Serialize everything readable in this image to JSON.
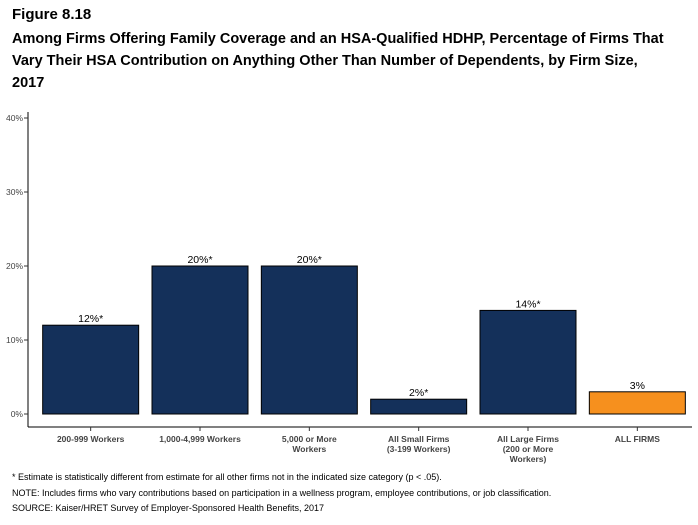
{
  "figure_label": "Figure 8.18",
  "chart_data": {
    "type": "bar",
    "title": "Among Firms Offering Family Coverage and an HSA-Qualified HDHP, Percentage of Firms That Vary Their HSA Contribution on Anything Other Than Number of Dependents, by Firm Size, 2017",
    "xlabel": "",
    "ylabel": "",
    "ylim": [
      0,
      40
    ],
    "yticks": [
      "0%",
      "10%",
      "20%",
      "30%",
      "40%"
    ],
    "ytick_values": [
      0,
      10,
      20,
      30,
      40
    ],
    "categories": [
      [
        "200-999 Workers"
      ],
      [
        "1,000-4,999 Workers"
      ],
      [
        "5,000 or More",
        "Workers"
      ],
      [
        "All Small Firms",
        "(3-199 Workers)"
      ],
      [
        "All Large Firms",
        "(200 or More",
        "Workers)"
      ],
      [
        "ALL FIRMS"
      ]
    ],
    "values": [
      12,
      20,
      20,
      2,
      14,
      3
    ],
    "data_labels": [
      "12%*",
      "20%*",
      "20%*",
      "2%*",
      "14%*",
      "3%"
    ],
    "bar_colors": [
      "#14305a",
      "#14305a",
      "#14305a",
      "#14305a",
      "#14305a",
      "#f6901e"
    ],
    "grid": false,
    "legend": "none"
  },
  "notes": {
    "footnote": "* Estimate is statistically different from estimate for all other firms not in the indicated size category (p < .05).",
    "note": "NOTE: Includes firms who vary contributions based on participation in a wellness program, employee contributions, or job classification.",
    "source": "SOURCE: Kaiser/HRET Survey of Employer-Sponsored Health Benefits, 2017"
  }
}
